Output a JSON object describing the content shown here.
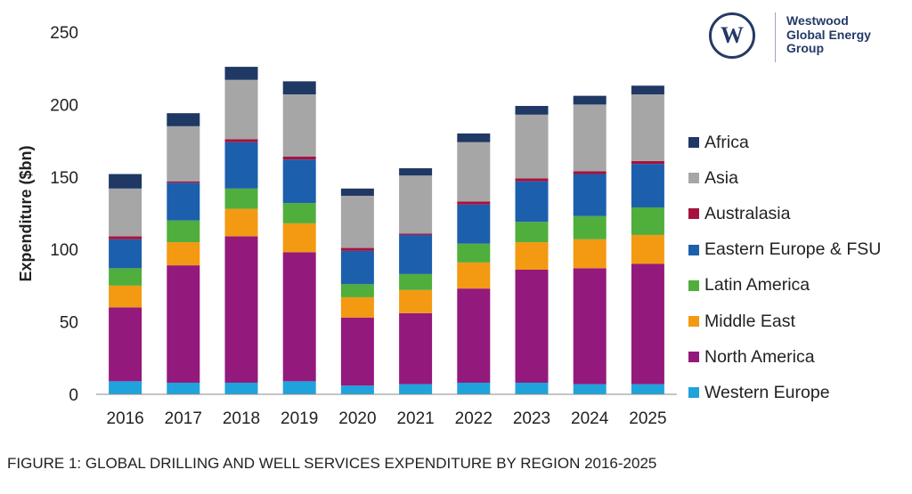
{
  "chart_data": {
    "type": "bar",
    "stacked": true,
    "title": "",
    "xlabel": "",
    "ylabel": "Expenditure ($bn)",
    "ylim": [
      0,
      250
    ],
    "yticks": [
      0,
      50,
      100,
      150,
      200,
      250
    ],
    "grid": false,
    "legend_position": "right",
    "categories": [
      "2016",
      "2017",
      "2018",
      "2019",
      "2020",
      "2021",
      "2022",
      "2023",
      "2024",
      "2025"
    ],
    "series": [
      {
        "name": "Western Europe",
        "color": "#1fa3dc",
        "values": [
          9,
          8,
          8,
          9,
          6,
          7,
          8,
          8,
          7,
          7
        ]
      },
      {
        "name": "North America",
        "color": "#93197c",
        "values": [
          51,
          81,
          101,
          89,
          47,
          49,
          65,
          78,
          80,
          83
        ]
      },
      {
        "name": "Middle East",
        "color": "#f39a12",
        "values": [
          15,
          16,
          19,
          20,
          14,
          16,
          18,
          19,
          20,
          20
        ]
      },
      {
        "name": "Latin America",
        "color": "#4fae3c",
        "values": [
          12,
          15,
          14,
          14,
          9,
          11,
          13,
          14,
          16,
          19
        ]
      },
      {
        "name": "Eastern Europe & FSU",
        "color": "#1c5fad",
        "values": [
          20,
          26,
          32,
          30,
          23,
          27,
          27,
          28,
          29,
          30
        ]
      },
      {
        "name": "Australasia",
        "color": "#a6123e",
        "values": [
          2,
          1,
          2,
          2,
          2,
          1,
          2,
          2,
          2,
          2
        ]
      },
      {
        "name": "Asia",
        "color": "#a6a6a6",
        "values": [
          33,
          38,
          41,
          43,
          36,
          40,
          41,
          44,
          46,
          46
        ]
      },
      {
        "name": "Africa",
        "color": "#1f3864",
        "values": [
          10,
          9,
          9,
          9,
          5,
          5,
          6,
          6,
          6,
          6
        ]
      }
    ]
  },
  "legend_order": [
    "Africa",
    "Asia",
    "Australasia",
    "Eastern Europe & FSU",
    "Latin America",
    "Middle East",
    "North America",
    "Western Europe"
  ],
  "logo": {
    "line1": "Westwood",
    "line2": "Global Energy",
    "line3": "Group",
    "color": "#243a66"
  },
  "caption": "FIGURE 1: GLOBAL DRILLING AND WELL SERVICES EXPENDITURE BY REGION 2016-2025"
}
